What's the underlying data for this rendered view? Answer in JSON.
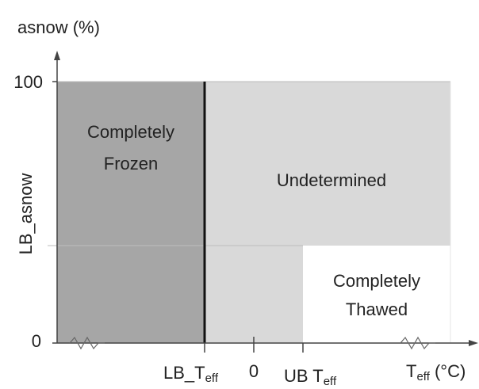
{
  "axes": {
    "y_title": "asnow (%)",
    "y_ticks": [
      "100",
      "0"
    ],
    "y_mid_label": "LB_asnow",
    "x_labels": {
      "lb": {
        "main": "LB_T",
        "sub": "eff"
      },
      "zero": "0",
      "ub": {
        "main": "UB T",
        "sub": "eff"
      },
      "x_title": {
        "main": "T",
        "sub": "eff",
        "unit": " (°C)"
      }
    }
  },
  "regions": {
    "frozen": [
      "Completely",
      "Frozen"
    ],
    "undetermined": "Undetermined",
    "thawed": [
      "Completely",
      "Thawed"
    ]
  }
}
